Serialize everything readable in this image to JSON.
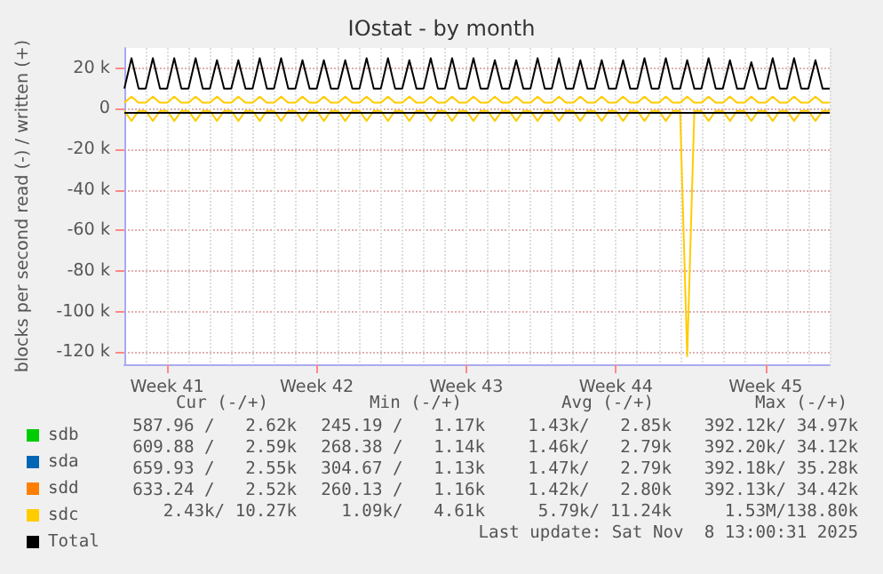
{
  "chart_data": {
    "type": "line",
    "title": "IOstat - by month",
    "ylabel": "blocks per second read (-) / written (+)",
    "categories": [
      null,
      null,
      null,
      null,
      null,
      null,
      "Week 41",
      null,
      null,
      null,
      null,
      null,
      null,
      null,
      null,
      null,
      null,
      null,
      null,
      null,
      null,
      null,
      null,
      null,
      null,
      null,
      null,
      "Week 42",
      null,
      null,
      null,
      null,
      null,
      null,
      null,
      null,
      null,
      null,
      null,
      null,
      null,
      null,
      null,
      null,
      null,
      null,
      null,
      null,
      "Week 43",
      null,
      null,
      null,
      null,
      null,
      null,
      null,
      null,
      null,
      null,
      null,
      null,
      null,
      null,
      null,
      null,
      null,
      null,
      null,
      null,
      "Week 44",
      null,
      null,
      null,
      null,
      null,
      null,
      null,
      null,
      null,
      null,
      null,
      null,
      null,
      null,
      null,
      null,
      null,
      null,
      null,
      null,
      "Week 45",
      null,
      null,
      null,
      null,
      null,
      null,
      null,
      null,
      null
    ],
    "series": [
      {
        "name": "sdb",
        "color": "#00cc00",
        "values": [
          null,
          null,
          null,
          null,
          null,
          null,
          null,
          null,
          null,
          null,
          null,
          null,
          null,
          null,
          null,
          null,
          null,
          null,
          null,
          null,
          null,
          null,
          null,
          null,
          null,
          null,
          null,
          null,
          null,
          null,
          null,
          null,
          null,
          null,
          null,
          null,
          null,
          null,
          null,
          null,
          null,
          null,
          null,
          null,
          null,
          null,
          null,
          null,
          null,
          null,
          null,
          null,
          null,
          null,
          null,
          null,
          null,
          null,
          null,
          null,
          null,
          null,
          null,
          null,
          null,
          null,
          null,
          null,
          null,
          null,
          null,
          null,
          null,
          null,
          null,
          null,
          null,
          null,
          null,
          null,
          null,
          null,
          null,
          null,
          null,
          null,
          null,
          null,
          null,
          null,
          null,
          null,
          null,
          null,
          null,
          null,
          null,
          null,
          null,
          null
        ]
      },
      {
        "name": "sda",
        "color": "#0066b3",
        "values": [
          null,
          null,
          null,
          null,
          null,
          null,
          null,
          null,
          null,
          null,
          null,
          null,
          null,
          null,
          null,
          null,
          null,
          null,
          null,
          null,
          null,
          null,
          null,
          null,
          null,
          null,
          null,
          null,
          null,
          null,
          null,
          null,
          null,
          null,
          null,
          null,
          null,
          null,
          null,
          null,
          null,
          null,
          null,
          null,
          null,
          null,
          null,
          null,
          null,
          null,
          null,
          null,
          null,
          null,
          null,
          null,
          null,
          null,
          null,
          null,
          null,
          null,
          null,
          null,
          null,
          null,
          null,
          null,
          null,
          null,
          null,
          null,
          null,
          null,
          null,
          null,
          null,
          null,
          null,
          null,
          null,
          null,
          null,
          null,
          null,
          null,
          null,
          null,
          null,
          null,
          null,
          null,
          null,
          null,
          null,
          null,
          null,
          null,
          null,
          null
        ]
      },
      {
        "name": "sdd",
        "color": "#ff8000",
        "values": [
          null,
          null,
          null,
          null,
          null,
          null,
          null,
          null,
          null,
          null,
          null,
          null,
          null,
          null,
          null,
          null,
          null,
          null,
          null,
          null,
          null,
          null,
          null,
          null,
          null,
          null,
          null,
          null,
          null,
          null,
          null,
          null,
          null,
          null,
          null,
          null,
          null,
          null,
          null,
          null,
          null,
          null,
          null,
          null,
          null,
          null,
          null,
          null,
          null,
          null,
          null,
          null,
          null,
          null,
          null,
          null,
          null,
          null,
          null,
          null,
          null,
          null,
          null,
          null,
          null,
          null,
          null,
          null,
          null,
          null,
          null,
          null,
          null,
          null,
          null,
          null,
          null,
          null,
          null,
          null,
          null,
          null,
          null,
          null,
          null,
          null,
          null,
          null,
          null,
          null,
          null,
          null,
          null,
          null,
          null,
          null,
          null,
          null,
          null,
          null
        ]
      },
      {
        "name": "sdc",
        "color": "#ffcc00",
        "values": [
          3000,
          6000,
          3000,
          3000,
          6000,
          3000,
          3000,
          6000,
          3000,
          3000,
          6000,
          3000,
          3000,
          6000,
          3000,
          3000,
          6000,
          3000,
          3000,
          6000,
          3000,
          3000,
          6000,
          3000,
          3000,
          6000,
          3000,
          3000,
          6000,
          3000,
          3000,
          6000,
          3000,
          3000,
          6000,
          3000,
          3000,
          6000,
          3000,
          3000,
          6000,
          3000,
          3000,
          6000,
          3000,
          3000,
          6000,
          3000,
          3000,
          6000,
          3000,
          3000,
          6000,
          3000,
          3000,
          6000,
          3000,
          3000,
          6000,
          3000,
          3000,
          6000,
          3000,
          3000,
          6000,
          3000,
          3000,
          6000,
          3000,
          3000,
          6000,
          3000,
          3000,
          6000,
          3000,
          3000,
          6000,
          3000,
          3000,
          6000,
          3000,
          3000,
          6000,
          3000,
          3000,
          6000,
          3000,
          3000,
          6000,
          3000,
          3000,
          6000,
          3000,
          3000,
          6000,
          3000,
          3000,
          6000,
          3000,
          3000
        ]
      },
      {
        "color": "#ffcc00",
        "values": [
          -1000,
          -6000,
          -1000,
          -1000,
          -6000,
          -1000,
          -1000,
          -6000,
          -1000,
          -1000,
          -6000,
          -1000,
          -1000,
          -6000,
          -1000,
          -1000,
          -6000,
          -1000,
          -1000,
          -6000,
          -1000,
          -1000,
          -6000,
          -1000,
          -1000,
          -6000,
          -1000,
          -1000,
          -6000,
          -1000,
          -1000,
          -6000,
          -1000,
          -1000,
          -6000,
          -1000,
          -1000,
          -6000,
          -1000,
          -1000,
          -6000,
          -1000,
          -1000,
          -6000,
          -1000,
          -1000,
          -6000,
          -1000,
          -1000,
          -6000,
          -1000,
          -1000,
          -6000,
          -1000,
          -1000,
          -6000,
          -1000,
          -1000,
          -6000,
          -1000,
          -1000,
          -6000,
          -1000,
          -1000,
          -6000,
          -1000,
          -1000,
          -6000,
          -1000,
          -1000,
          -6000,
          -1000,
          -1000,
          -6000,
          -1000,
          -1000,
          -6000,
          -1000,
          -1000,
          -122000,
          -1000,
          -1000,
          -6000,
          -1000,
          -1000,
          -6000,
          -1000,
          -1000,
          -6000,
          -1000,
          -1000,
          -6000,
          -1000,
          -1000,
          -6000,
          -1000,
          -1000,
          -6000,
          -1000,
          -1000
        ]
      },
      {
        "name": "Total",
        "color": "#000000",
        "values": [
          10000,
          25000,
          10000,
          10000,
          25000,
          10000,
          10000,
          25000,
          10000,
          10000,
          25000,
          10000,
          10000,
          24000,
          10000,
          10000,
          24000,
          10000,
          10000,
          25000,
          10000,
          10000,
          25000,
          10000,
          10000,
          24000,
          10000,
          10000,
          24000,
          10000,
          10000,
          24000,
          10000,
          10000,
          25000,
          10000,
          10000,
          25000,
          10000,
          10000,
          24000,
          10000,
          10000,
          25000,
          10000,
          10000,
          25000,
          10000,
          10000,
          25000,
          10000,
          10000,
          24000,
          10000,
          10000,
          24000,
          10000,
          10000,
          25000,
          10000,
          10000,
          25000,
          10000,
          10000,
          24000,
          10000,
          10000,
          24000,
          10000,
          10000,
          24000,
          10000,
          10000,
          25000,
          10000,
          10000,
          25000,
          10000,
          10000,
          24000,
          10000,
          10000,
          25000,
          10000,
          10000,
          24000,
          10000,
          10000,
          23000,
          10000,
          10000,
          25000,
          10000,
          10000,
          25000,
          10000,
          10000,
          24000,
          10000,
          10000
        ]
      },
      {
        "color": "#000000",
        "values": [
          -2000,
          -2000,
          -2000,
          -2000,
          -2000,
          -2000,
          -2000,
          -2000,
          -2000,
          -2000,
          -2000,
          -2000,
          -2000,
          -2000,
          -2000,
          -2000,
          -2000,
          -2000,
          -2000,
          -2000,
          -2000,
          -2000,
          -2000,
          -2000,
          -2000,
          -2000,
          -2000,
          -2000,
          -2000,
          -2000,
          -2000,
          -2000,
          -2000,
          -2000,
          -2000,
          -2000,
          -2000,
          -2000,
          -2000,
          -2000,
          -2000,
          -2000,
          -2000,
          -2000,
          -2000,
          -2000,
          -2000,
          -2000,
          -2000,
          -2000,
          -2000,
          -2000,
          -2000,
          -2000,
          -2000,
          -2000,
          -2000,
          -2000,
          -2000,
          -2000,
          -2000,
          -2000,
          -2000,
          -2000,
          -2000,
          -2000,
          -2000,
          -2000,
          -2000,
          -2000,
          -2000,
          -2000,
          -2000,
          -2000,
          -2000,
          -2000,
          -2000,
          -2000,
          -2000,
          -2000,
          -2000,
          -2000,
          -2000,
          -2000,
          -2000,
          -2000,
          -2000,
          -2000,
          -2000,
          -2000,
          -2000,
          -2000,
          -2000,
          -2000,
          -2000,
          -2000,
          -2000,
          -2000,
          -2000,
          -2000
        ]
      }
    ],
    "ylim": [
      -126000,
      30000
    ],
    "yticks": [
      {
        "value": -120000,
        "label": "-120 k"
      },
      {
        "value": -100000,
        "label": "-100 k"
      },
      {
        "value": -80000,
        "label": "-80 k"
      },
      {
        "value": -60000,
        "label": "-60 k"
      },
      {
        "value": -40000,
        "label": "-40 k"
      },
      {
        "value": -20000,
        "label": "-20 k"
      },
      0,
      {
        "value": 20000,
        "label": "20 k"
      }
    ],
    "grid": true,
    "legend": "bottom left",
    "annotations": [
      "Cur (-/+)",
      "Min (-/+)",
      "Avg (-/+)",
      "Max (-/+)",
      "587.96 /   2.62k",
      "245.19 /   1.17k",
      "1.43k/   2.85k",
      "392.12k/ 34.97k",
      "609.88 /   2.59k",
      "268.38 /   1.14k",
      "1.46k/   2.79k",
      "392.20k/ 34.12k",
      "659.93 /   2.55k",
      "304.67 /   1.13k",
      "1.47k/   2.79k",
      "392.18k/ 35.28k",
      "633.24 /   2.52k",
      "260.13 /   1.16k",
      "1.42k/   2.80k",
      "392.13k/ 34.42k",
      "2.43k/ 10.27k",
      "1.09k/   4.61k",
      "5.79k/ 11.24k",
      "1.53M/138.80k",
      "Last update: Sat Nov  8 13:00:31 2025"
    ]
  }
}
